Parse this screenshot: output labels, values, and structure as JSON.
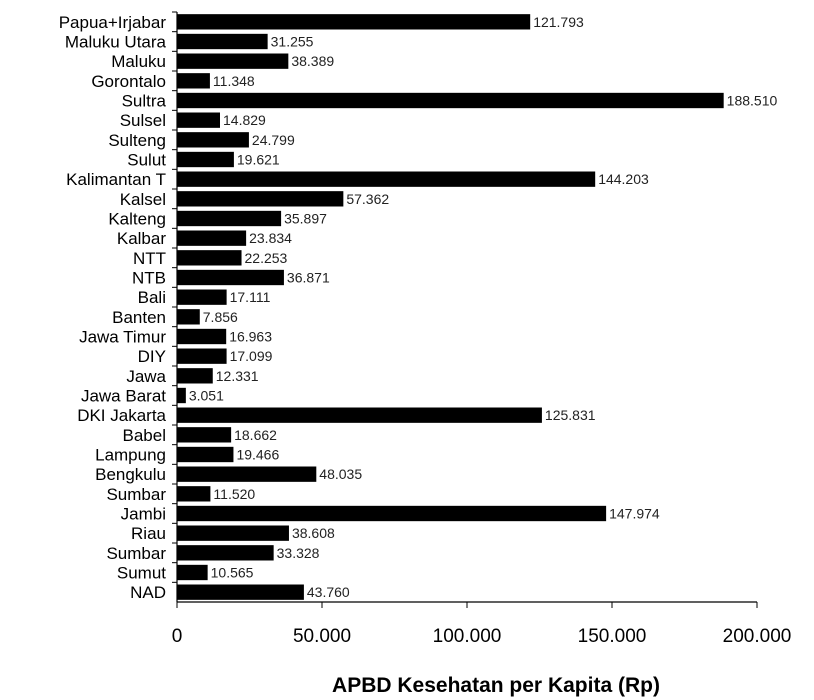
{
  "chart_data": {
    "type": "bar",
    "orientation": "horizontal",
    "categories": [
      "Papua+Irjabar",
      "Maluku Utara",
      "Maluku",
      "Gorontalo",
      "Sultra",
      "Sulsel",
      "Sulteng",
      "Sulut",
      "Kalimantan T",
      "Kalsel",
      "Kalteng",
      "Kalbar",
      "NTT",
      "NTB",
      "Bali",
      "Banten",
      "Jawa Timur",
      "DIY",
      "Jawa",
      "Jawa Barat",
      "DKI Jakarta",
      "Babel",
      "Lampung",
      "Bengkulu",
      "Sumbar",
      "Jambi",
      "Riau",
      "Sumbar",
      "Sumut",
      "NAD"
    ],
    "values": [
      121793,
      31255,
      38389,
      11348,
      188510,
      14829,
      24799,
      19621,
      144203,
      57362,
      35897,
      23834,
      22253,
      36871,
      17111,
      7856,
      16963,
      17099,
      12331,
      3051,
      125831,
      18662,
      19466,
      48035,
      11520,
      147974,
      38608,
      33328,
      10565,
      43760
    ],
    "value_labels": [
      "121.793",
      "31.255",
      "38.389",
      "11.348",
      "188.510",
      "14.829",
      "24.799",
      "19.621",
      "144.203",
      "57.362",
      "35.897",
      "23.834",
      "22.253",
      "36.871",
      "17.111",
      "7.856",
      "16.963",
      "17.099",
      "12.331",
      "3.051",
      "125.831",
      "18.662",
      "19.466",
      "48.035",
      "11.520",
      "147.974",
      "38.608",
      "33.328",
      "10.565",
      "43.760"
    ],
    "xlabel": "APBD Kesehatan per Kapita (Rp)",
    "ylabel": "",
    "xlim": [
      0,
      200000
    ],
    "x_ticks": [
      0,
      50000,
      100000,
      150000,
      200000
    ],
    "x_tick_labels": [
      "0",
      "50.000",
      "100.000",
      "150.000",
      "200.000"
    ],
    "bar_color": "#000000",
    "grid": false,
    "legend": "none"
  }
}
